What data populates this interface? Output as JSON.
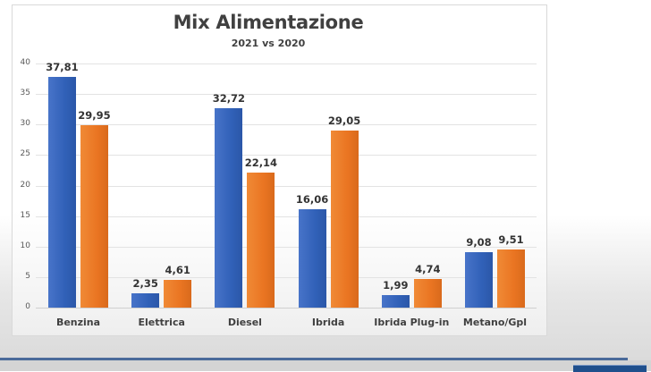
{
  "chart_data": {
    "type": "bar",
    "title": "Mix Alimentazione",
    "subtitle": "2021 vs 2020",
    "categories": [
      "Benzina",
      "Elettrica",
      "Diesel",
      "Ibrida",
      "Ibrida Plug-in",
      "Metano/Gpl"
    ],
    "series": [
      {
        "name": "2021",
        "color": "#3463BD",
        "values": [
          37.81,
          2.35,
          32.72,
          16.06,
          1.99,
          9.08
        ],
        "labels": [
          "37,81",
          "2,35",
          "32,72",
          "16,06",
          "1,99",
          "9,08"
        ]
      },
      {
        "name": "2020",
        "color": "#EC7A27",
        "values": [
          29.95,
          4.61,
          22.14,
          29.05,
          4.74,
          9.51
        ],
        "labels": [
          "29,95",
          "4,61",
          "22,14",
          "29,05",
          "4,74",
          "9,51"
        ]
      }
    ],
    "xlabel": "",
    "ylabel": "",
    "ylim": [
      0,
      40
    ],
    "yticks": [
      "0",
      "5",
      "10",
      "15",
      "20",
      "25",
      "30",
      "35",
      "40"
    ],
    "grid": true,
    "legend": "none",
    "data_labels": true
  }
}
